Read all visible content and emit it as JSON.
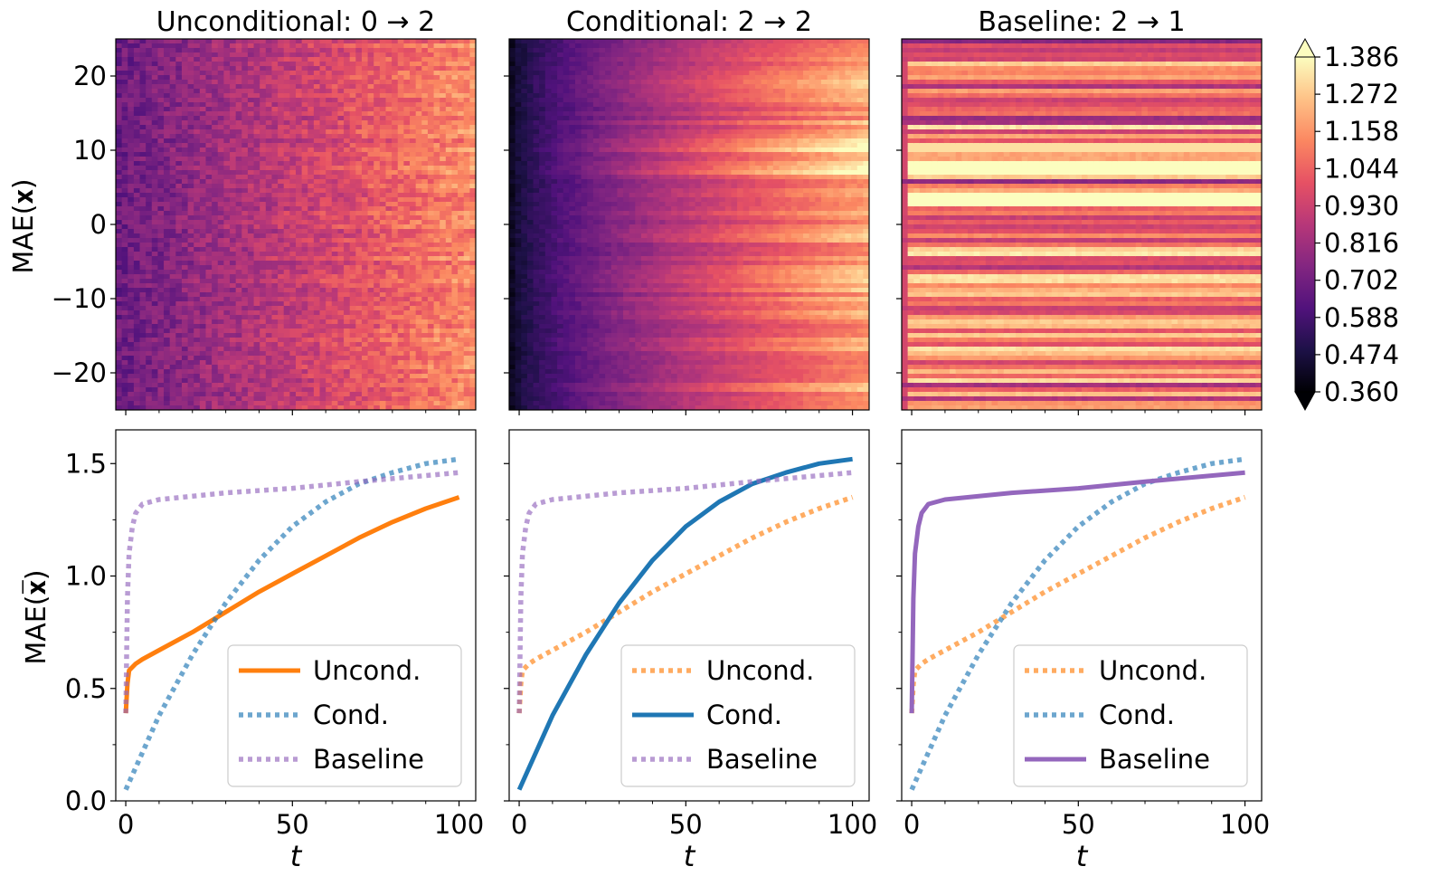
{
  "colormap": {
    "name": "magma-like",
    "stops": [
      "#000004",
      "#1d1147",
      "#51127c",
      "#832681",
      "#b73779",
      "#e65164",
      "#fb8761",
      "#fec287",
      "#fcfdbf"
    ],
    "label_tick_values": [
      "1.386",
      "1.272",
      "1.158",
      "1.044",
      "0.930",
      "0.816",
      "0.702",
      "0.588",
      "0.474",
      "0.360"
    ],
    "min": 0.36,
    "max": 1.386,
    "extend": "both"
  },
  "series_colors": {
    "uncond": "#ff7f0e",
    "cond": "#1f77b4",
    "baseline": "#9467bd"
  },
  "top_ylabel": "MAE(𝐱)",
  "bottom_ylabel": "MAE(𝐱̅)",
  "xlabel": "t",
  "chart_data": [
    {
      "type": "heatmap",
      "title": "Unconditional: 0 → 2",
      "xlim": [
        -3,
        105
      ],
      "ylim": [
        -25,
        25
      ],
      "yticks": [
        20,
        10,
        0,
        -10,
        -20
      ],
      "ytick_labels": [
        "20",
        "10",
        "0",
        "−10",
        "−20"
      ],
      "pattern": "noisy drift",
      "value_range": [
        0.65,
        1.2
      ]
    },
    {
      "type": "heatmap",
      "title": "Conditional: 2 → 2",
      "xlim": [
        -3,
        105
      ],
      "ylim": [
        -25,
        25
      ],
      "pattern": "dark start, rising",
      "value_range": [
        0.36,
        1.3
      ]
    },
    {
      "type": "heatmap",
      "title": "Baseline: 2 → 1",
      "xlim": [
        -3,
        105
      ],
      "ylim": [
        -25,
        25
      ],
      "pattern": "horizontal bands",
      "bright_bands_y": [
        7.5,
        3.5,
        10.5
      ],
      "value_range": [
        0.6,
        1.386
      ]
    },
    {
      "type": "line",
      "xlim": [
        -3,
        105
      ],
      "ylim": [
        0,
        1.65
      ],
      "xticks": [
        0,
        50,
        100
      ],
      "xtick_labels": [
        "0",
        "50",
        "100"
      ],
      "yticks": [
        0,
        0.5,
        1.0,
        1.5
      ],
      "ytick_labels": [
        "0.0",
        "0.5",
        "1.0",
        "1.5"
      ],
      "highlight": "uncond",
      "legend": [
        "Uncond.",
        "Cond.",
        "Baseline"
      ],
      "legend_location": "lower-right",
      "series": [
        {
          "name": "Uncond.",
          "key": "uncond",
          "x": [
            0,
            0.5,
            1,
            3,
            5,
            10,
            20,
            30,
            40,
            50,
            60,
            70,
            80,
            90,
            100
          ],
          "y": [
            0.39,
            0.52,
            0.58,
            0.61,
            0.63,
            0.67,
            0.75,
            0.84,
            0.93,
            1.01,
            1.09,
            1.17,
            1.24,
            1.3,
            1.35
          ]
        },
        {
          "name": "Cond.",
          "key": "cond",
          "x": [
            0,
            10,
            20,
            30,
            40,
            50,
            60,
            70,
            80,
            90,
            100
          ],
          "y": [
            0.05,
            0.38,
            0.65,
            0.88,
            1.07,
            1.22,
            1.33,
            1.41,
            1.46,
            1.5,
            1.52
          ]
        },
        {
          "name": "Baseline",
          "key": "baseline",
          "x": [
            0,
            0.5,
            1,
            2,
            3,
            5,
            10,
            30,
            50,
            70,
            100
          ],
          "y": [
            0.39,
            0.9,
            1.1,
            1.22,
            1.28,
            1.32,
            1.34,
            1.37,
            1.39,
            1.42,
            1.46
          ]
        }
      ]
    },
    {
      "type": "line",
      "xlim": [
        -3,
        105
      ],
      "ylim": [
        0,
        1.65
      ],
      "xticks": [
        0,
        50,
        100
      ],
      "xtick_labels": [
        "0",
        "50",
        "100"
      ],
      "highlight": "cond",
      "legend": [
        "Uncond.",
        "Cond.",
        "Baseline"
      ],
      "legend_location": "lower-right",
      "series": [
        {
          "name": "Uncond.",
          "key": "uncond",
          "x": [
            0,
            0.5,
            1,
            3,
            5,
            10,
            20,
            30,
            40,
            50,
            60,
            70,
            80,
            90,
            100
          ],
          "y": [
            0.39,
            0.52,
            0.58,
            0.61,
            0.63,
            0.67,
            0.75,
            0.84,
            0.93,
            1.01,
            1.09,
            1.17,
            1.24,
            1.3,
            1.35
          ]
        },
        {
          "name": "Cond.",
          "key": "cond",
          "x": [
            0,
            10,
            20,
            30,
            40,
            50,
            60,
            70,
            80,
            90,
            100
          ],
          "y": [
            0.05,
            0.38,
            0.65,
            0.88,
            1.07,
            1.22,
            1.33,
            1.41,
            1.46,
            1.5,
            1.52
          ]
        },
        {
          "name": "Baseline",
          "key": "baseline",
          "x": [
            0,
            0.5,
            1,
            2,
            3,
            5,
            10,
            30,
            50,
            70,
            100
          ],
          "y": [
            0.39,
            0.9,
            1.1,
            1.22,
            1.28,
            1.32,
            1.34,
            1.37,
            1.39,
            1.42,
            1.46
          ]
        }
      ]
    },
    {
      "type": "line",
      "xlim": [
        -3,
        105
      ],
      "ylim": [
        0,
        1.65
      ],
      "xticks": [
        0,
        50,
        100
      ],
      "xtick_labels": [
        "0",
        "50",
        "100"
      ],
      "highlight": "baseline",
      "legend": [
        "Uncond.",
        "Cond.",
        "Baseline"
      ],
      "legend_location": "lower-right",
      "series": [
        {
          "name": "Uncond.",
          "key": "uncond",
          "x": [
            0,
            0.5,
            1,
            3,
            5,
            10,
            20,
            30,
            40,
            50,
            60,
            70,
            80,
            90,
            100
          ],
          "y": [
            0.39,
            0.52,
            0.58,
            0.61,
            0.63,
            0.67,
            0.75,
            0.84,
            0.93,
            1.01,
            1.09,
            1.17,
            1.24,
            1.3,
            1.35
          ]
        },
        {
          "name": "Cond.",
          "key": "cond",
          "x": [
            0,
            10,
            20,
            30,
            40,
            50,
            60,
            70,
            80,
            90,
            100
          ],
          "y": [
            0.05,
            0.38,
            0.65,
            0.88,
            1.07,
            1.22,
            1.33,
            1.41,
            1.46,
            1.5,
            1.52
          ]
        },
        {
          "name": "Baseline",
          "key": "baseline",
          "x": [
            0,
            0.5,
            1,
            2,
            3,
            5,
            10,
            30,
            50,
            70,
            100
          ],
          "y": [
            0.39,
            0.9,
            1.1,
            1.22,
            1.28,
            1.32,
            1.34,
            1.37,
            1.39,
            1.42,
            1.46
          ]
        }
      ]
    }
  ]
}
